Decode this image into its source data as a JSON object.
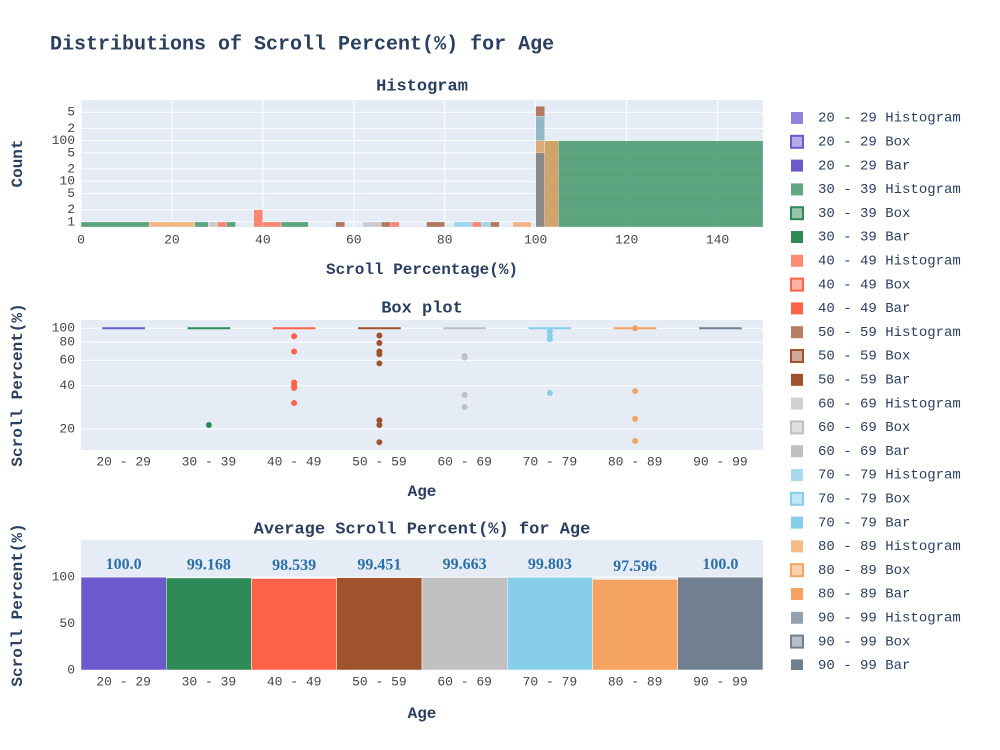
{
  "title": "Distributions of Scroll Percent(%) for Age",
  "chart_data": [
    {
      "type": "histogram",
      "title": "Histogram",
      "x_label": "Scroll Percentage(%)",
      "y_label": "Count",
      "log_y": true,
      "xlim": [
        0,
        150
      ],
      "xticks": [
        0,
        20,
        40,
        60,
        80,
        100,
        120,
        140
      ],
      "ylim": [
        0.75,
        1000
      ],
      "yticks": [
        1,
        2,
        5,
        10,
        {
          "value": 20,
          "label": "2"
        },
        {
          "value": 50,
          "label": "5"
        },
        100,
        {
          "value": 200,
          "label": "2"
        },
        {
          "value": 500,
          "label": "5"
        }
      ],
      "series": [
        {
          "name": "20 - 29 Histogram",
          "color": "#6a5acd",
          "bins": [
            100,
            102
          ],
          "counts": [
            10
          ]
        },
        {
          "name": "30 - 39 Histogram",
          "color": "#2e8b57",
          "bins": [
            0,
            15,
            25,
            28,
            32,
            34,
            44,
            50,
            102,
            150
          ],
          "counts": [
            1,
            null,
            1,
            null,
            1,
            null,
            1,
            null,
            100
          ]
        },
        {
          "name": "40 - 49 Histogram",
          "color": "#ff6347",
          "bins": [
            30,
            32,
            38,
            40,
            44,
            68,
            70,
            86,
            88
          ],
          "counts": [
            1,
            null,
            2,
            1,
            null,
            1,
            null,
            1
          ]
        },
        {
          "name": "50 - 59 Histogram",
          "color": "#a0522d",
          "bins": [
            56,
            58,
            66,
            68,
            76,
            80,
            90,
            92,
            100,
            102
          ],
          "counts": [
            1,
            null,
            1,
            null,
            1,
            null,
            1,
            null,
            700
          ]
        },
        {
          "name": "60 - 69 Histogram",
          "color": "#c0c0c0",
          "bins": [
            28,
            30,
            62,
            66
          ],
          "counts": [
            1,
            null,
            1
          ]
        },
        {
          "name": "70 - 79 Histogram",
          "color": "#87ceeb",
          "bins": [
            82,
            86,
            88,
            90,
            100,
            102
          ],
          "counts": [
            1,
            null,
            1,
            null,
            400
          ]
        },
        {
          "name": "80 - 89 Histogram",
          "color": "#f4a460",
          "bins": [
            15,
            25,
            95,
            99,
            100,
            102,
            105
          ],
          "counts": [
            1,
            null,
            1,
            null,
            100,
            100
          ]
        },
        {
          "name": "90 - 99 Histogram",
          "color": "#708090",
          "bins": [
            100,
            102
          ],
          "counts": [
            50
          ]
        }
      ]
    },
    {
      "type": "box",
      "title": "Box plot",
      "x_label": "Age",
      "y_label": "Scroll Percent(%)",
      "log_y": true,
      "ylim": [
        14.3,
        114
      ],
      "yticks": [
        20,
        40,
        60,
        80,
        100
      ],
      "categories": [
        "20 - 29",
        "30 - 39",
        "40 - 49",
        "50 - 59",
        "60 - 69",
        "70 - 79",
        "80 - 89",
        "90 - 99"
      ],
      "series": [
        {
          "name": "20 - 29 Box",
          "color": "#6a5acd",
          "q1": 100,
          "median": 100,
          "q3": 100,
          "outliers": []
        },
        {
          "name": "30 - 39 Box",
          "color": "#2e8b57",
          "q1": 100,
          "median": 100,
          "q3": 100,
          "outliers": [
            21.3
          ]
        },
        {
          "name": "40 - 49 Box",
          "color": "#ff6347",
          "q1": 100,
          "median": 100,
          "q3": 100,
          "outliers": [
            88,
            69,
            42,
            40,
            38.5,
            30.3
          ]
        },
        {
          "name": "50 - 59 Box",
          "color": "#a0522d",
          "q1": 100,
          "median": 100,
          "q3": 100,
          "outliers": [
            89,
            79,
            69,
            66,
            57,
            23,
            21.3,
            16.2
          ]
        },
        {
          "name": "60 - 69 Box",
          "color": "#c0c0c0",
          "q1": 100,
          "median": 100,
          "q3": 100,
          "outliers": [
            64,
            62.6,
            34.4,
            28.4
          ]
        },
        {
          "name": "70 - 79 Box",
          "color": "#87ceeb",
          "q1": 100,
          "median": 100,
          "q3": 100,
          "outliers": [
            95,
            89,
            84,
            35.5
          ]
        },
        {
          "name": "80 - 89 Box",
          "color": "#f4a460",
          "q1": 100,
          "median": 100,
          "q3": 100,
          "outliers": [
            100,
            36.6,
            23.5,
            16.5
          ]
        },
        {
          "name": "90 - 99 Box",
          "color": "#708090",
          "q1": 100,
          "median": 100,
          "q3": 100,
          "outliers": []
        }
      ]
    },
    {
      "type": "bar",
      "title": "Average Scroll Percent(%) for Age",
      "x_label": "Age",
      "y_label": "Scroll Percent(%)",
      "ylim": [
        0,
        140
      ],
      "yticks": [
        0,
        50,
        100
      ],
      "categories": [
        "20 - 29",
        "30 - 39",
        "40 - 49",
        "50 - 59",
        "60 - 69",
        "70 - 79",
        "80 - 89",
        "90 - 99"
      ],
      "series": [
        {
          "name": "20 - 29 Bar",
          "color": "#6a5acd",
          "values": [
            100.0,
            null,
            null,
            null,
            null,
            null,
            null,
            null
          ],
          "value_labels": [
            "100.0",
            null,
            null,
            null,
            null,
            null,
            null,
            null
          ]
        },
        {
          "name": "30 - 39 Bar",
          "color": "#2e8b57",
          "values": [
            null,
            99.168,
            null,
            null,
            null,
            null,
            null,
            null
          ],
          "value_labels": [
            null,
            "99.168",
            null,
            null,
            null,
            null,
            null,
            null
          ]
        },
        {
          "name": "40 - 49 Bar",
          "color": "#ff6347",
          "values": [
            null,
            null,
            98.539,
            null,
            null,
            null,
            null,
            null
          ],
          "value_labels": [
            null,
            null,
            "98.539",
            null,
            null,
            null,
            null,
            null
          ]
        },
        {
          "name": "50 - 59 Bar",
          "color": "#a0522d",
          "values": [
            null,
            null,
            null,
            99.451,
            null,
            null,
            null,
            null
          ],
          "value_labels": [
            null,
            null,
            null,
            "99.451",
            null,
            null,
            null,
            null
          ]
        },
        {
          "name": "60 - 69 Bar",
          "color": "#c0c0c0",
          "values": [
            null,
            null,
            null,
            null,
            99.663,
            null,
            null,
            null
          ],
          "value_labels": [
            null,
            null,
            null,
            null,
            "99.663",
            null,
            null,
            null
          ]
        },
        {
          "name": "70 - 79 Bar",
          "color": "#87ceeb",
          "values": [
            null,
            null,
            null,
            null,
            null,
            99.803,
            null,
            null
          ],
          "value_labels": [
            null,
            null,
            null,
            null,
            null,
            "99.803",
            null,
            null
          ]
        },
        {
          "name": "80 - 89 Bar",
          "color": "#f4a460",
          "values": [
            null,
            null,
            null,
            null,
            null,
            null,
            97.596,
            null
          ],
          "value_labels": [
            null,
            null,
            null,
            null,
            null,
            null,
            "97.596",
            null
          ]
        },
        {
          "name": "90 - 99 Bar",
          "color": "#708090",
          "values": [
            null,
            null,
            null,
            null,
            null,
            null,
            null,
            100.0
          ],
          "value_labels": [
            null,
            null,
            null,
            null,
            null,
            null,
            null,
            "100.0"
          ]
        }
      ]
    }
  ]
}
